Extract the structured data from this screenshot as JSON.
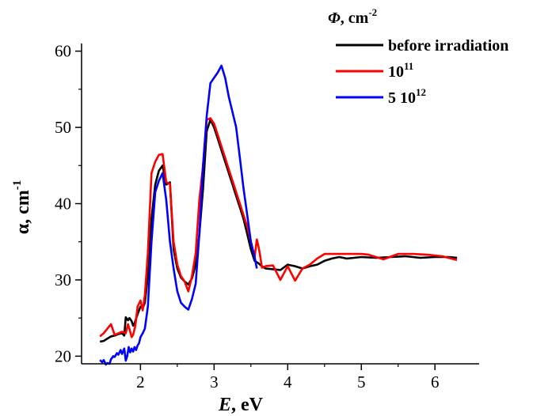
{
  "chart_data": {
    "type": "line",
    "xlabel_var": "E",
    "xlabel_unit": ", eV",
    "ylabel_prefix": "α, cm",
    "ylabel_sup": "-1",
    "legend_title_var": "Φ",
    "legend_title_unit": ", cm",
    "legend_title_sup": "-2",
    "legend_position": "top-right",
    "xlim": [
      1.2,
      6.6
    ],
    "ylim": [
      19,
      61
    ],
    "xticks": [
      2,
      3,
      4,
      5,
      6
    ],
    "yticks": [
      20,
      30,
      40,
      50,
      60
    ],
    "xtick_labels": [
      "2",
      "3",
      "4",
      "5",
      "6"
    ],
    "ytick_labels": [
      "20",
      "30",
      "40",
      "50",
      "60"
    ],
    "grid": false,
    "series": [
      {
        "label_text": "before irradiation",
        "label_sup": "",
        "color": "#000000",
        "x": [
          1.45,
          1.5,
          1.55,
          1.6,
          1.65,
          1.7,
          1.75,
          1.78,
          1.8,
          1.83,
          1.85,
          1.88,
          1.9,
          1.92,
          1.95,
          1.98,
          2.0,
          2.03,
          2.06,
          2.1,
          2.15,
          2.2,
          2.25,
          2.3,
          2.35,
          2.4,
          2.45,
          2.5,
          2.55,
          2.6,
          2.65,
          2.7,
          2.75,
          2.8,
          2.85,
          2.9,
          2.95,
          3.0,
          3.05,
          3.1,
          3.15,
          3.2,
          3.25,
          3.3,
          3.35,
          3.4,
          3.45,
          3.5,
          3.55,
          3.6,
          3.65,
          3.7,
          3.8,
          3.9,
          4.0,
          4.1,
          4.2,
          4.3,
          4.4,
          4.5,
          4.6,
          4.7,
          4.8,
          4.9,
          5.0,
          5.2,
          5.4,
          5.6,
          5.8,
          6.0,
          6.2,
          6.3
        ],
        "y": [
          21.9,
          22.0,
          22.3,
          22.6,
          22.7,
          22.9,
          23.0,
          22.7,
          25.1,
          24.7,
          25.0,
          24.6,
          24.0,
          24.3,
          25.2,
          26.0,
          26.5,
          26.3,
          27.0,
          30.5,
          38.0,
          42.5,
          44.3,
          45.0,
          42.5,
          42.8,
          34.0,
          31.5,
          30.3,
          29.8,
          29.4,
          30.2,
          32.0,
          36.0,
          42.0,
          49.5,
          51.0,
          50.0,
          48.5,
          47.0,
          45.5,
          44.0,
          42.5,
          41.0,
          39.5,
          38.0,
          36.0,
          34.0,
          32.5,
          32.2,
          31.8,
          31.5,
          31.4,
          31.3,
          32.0,
          31.8,
          31.5,
          31.8,
          32.0,
          32.5,
          32.8,
          33.0,
          32.8,
          32.9,
          33.0,
          32.9,
          33.0,
          33.1,
          32.9,
          33.0,
          33.0,
          32.9
        ]
      },
      {
        "label_text": "10",
        "label_sup": "11",
        "color": "#ff0000",
        "x": [
          1.45,
          1.5,
          1.55,
          1.6,
          1.65,
          1.7,
          1.75,
          1.8,
          1.83,
          1.85,
          1.88,
          1.9,
          1.93,
          1.96,
          2.0,
          2.03,
          2.06,
          2.1,
          2.15,
          2.2,
          2.25,
          2.3,
          2.35,
          2.4,
          2.45,
          2.5,
          2.55,
          2.6,
          2.65,
          2.7,
          2.75,
          2.8,
          2.85,
          2.9,
          2.95,
          3.0,
          3.05,
          3.1,
          3.15,
          3.2,
          3.25,
          3.3,
          3.35,
          3.4,
          3.45,
          3.5,
          3.55,
          3.58,
          3.6,
          3.62,
          3.65,
          3.7,
          3.8,
          3.9,
          4.0,
          4.1,
          4.2,
          4.3,
          4.4,
          4.5,
          4.7,
          4.9,
          5.0,
          5.1,
          5.3,
          5.5,
          5.7,
          5.9,
          6.1,
          6.3
        ],
        "y": [
          22.6,
          23.0,
          23.6,
          24.2,
          22.8,
          23.0,
          23.2,
          23.0,
          24.2,
          23.6,
          22.5,
          22.8,
          24.0,
          26.5,
          27.3,
          26.0,
          28.0,
          33.5,
          44.0,
          45.5,
          46.4,
          46.5,
          42.8,
          42.6,
          35.0,
          32.0,
          30.5,
          29.8,
          28.5,
          30.5,
          33.5,
          40.5,
          45.0,
          51.0,
          51.2,
          50.5,
          49.0,
          47.5,
          46.0,
          44.5,
          43.0,
          41.5,
          40.0,
          38.5,
          37.0,
          35.0,
          33.0,
          35.3,
          34.5,
          33.5,
          31.6,
          31.8,
          31.9,
          30.0,
          31.8,
          29.9,
          31.5,
          32.0,
          32.8,
          33.4,
          33.4,
          33.4,
          33.4,
          33.3,
          32.7,
          33.4,
          33.4,
          33.3,
          33.1,
          32.6
        ]
      },
      {
        "label_text": "5 10",
        "label_sup": "12",
        "color": "#0000ff",
        "x": [
          1.45,
          1.48,
          1.5,
          1.53,
          1.55,
          1.58,
          1.6,
          1.63,
          1.65,
          1.68,
          1.7,
          1.73,
          1.75,
          1.78,
          1.8,
          1.82,
          1.84,
          1.86,
          1.88,
          1.9,
          1.92,
          1.94,
          1.96,
          1.98,
          2.0,
          2.03,
          2.06,
          2.1,
          2.15,
          2.2,
          2.25,
          2.3,
          2.35,
          2.4,
          2.45,
          2.5,
          2.55,
          2.6,
          2.65,
          2.7,
          2.75,
          2.8,
          2.85,
          2.9,
          2.95,
          3.0,
          3.05,
          3.1,
          3.15,
          3.2,
          3.25,
          3.3,
          3.35,
          3.4,
          3.45,
          3.5,
          3.55,
          3.58
        ],
        "y": [
          19.5,
          19.2,
          19.5,
          18.9,
          19.1,
          19.0,
          19.6,
          20.0,
          19.9,
          20.4,
          20.2,
          20.8,
          20.3,
          21.0,
          19.4,
          20.0,
          21.2,
          20.5,
          21.0,
          20.6,
          21.2,
          20.8,
          21.4,
          21.7,
          22.5,
          23.0,
          23.6,
          26.5,
          35.0,
          41.5,
          43.0,
          44.0,
          40.5,
          35.0,
          31.5,
          28.5,
          27.0,
          26.5,
          26.1,
          27.5,
          29.5,
          36.0,
          45.0,
          51.5,
          55.8,
          56.5,
          57.2,
          58.1,
          56.5,
          54.0,
          52.0,
          50.0,
          46.0,
          42.0,
          38.5,
          35.0,
          33.0,
          31.5
        ]
      }
    ]
  }
}
